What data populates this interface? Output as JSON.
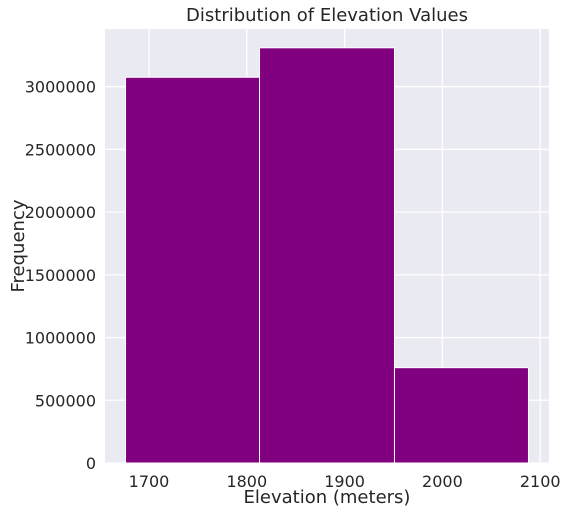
{
  "chart_data": {
    "type": "bar",
    "title": "Distribution of Elevation Values",
    "xlabel": "Elevation (meters)",
    "ylabel": "Frequency",
    "bins": [
      {
        "start": 1676,
        "end": 1813,
        "count": 3075000
      },
      {
        "start": 1813,
        "end": 1951,
        "count": 3310000
      },
      {
        "start": 1951,
        "end": 2088,
        "count": 760000
      }
    ],
    "xlim": [
      1655,
      2109
    ],
    "ylim": [
      0,
      3460000
    ],
    "xticks": [
      1700,
      1800,
      1900,
      2000,
      2100
    ],
    "yticks": [
      0,
      500000,
      1000000,
      1500000,
      2000000,
      2500000,
      3000000
    ],
    "grid": true,
    "colors": {
      "bar": "#800080",
      "bar_edge": "#ffffff",
      "plot_background": "#eaeaf2",
      "grid": "#ffffff"
    }
  }
}
